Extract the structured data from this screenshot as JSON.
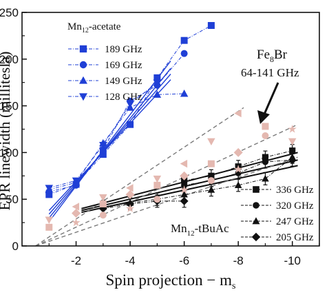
{
  "chart_data": {
    "type": "scatter",
    "xlabel": "Spin projection − m",
    "xlabel_sub": "s",
    "ylabel": "EPR linewidth (millitesla)",
    "xlim": [
      0,
      -11
    ],
    "ylim": [
      0,
      250
    ],
    "x_ticks": [
      -2,
      -4,
      -6,
      -8,
      -10
    ],
    "x_tick_labels": [
      "-2",
      "-4",
      "-6",
      "-8",
      "-10"
    ],
    "y_ticks": [
      0,
      50,
      100,
      150,
      200,
      250
    ],
    "y_tick_labels": [
      "0",
      "50",
      "100",
      "150",
      "200",
      "250"
    ],
    "colors": {
      "mn12_acetate": "#1f3fd6",
      "mn12_tbuac": "#111111",
      "fe8br": "#e4b8b0",
      "fe8_line": "#7a7a7a"
    },
    "groups": {
      "mn12_acetate": {
        "label_main": "Mn",
        "label_sub": "12",
        "label_rest": "-acetate"
      },
      "mn12_tbuac": {
        "label_main": "Mn",
        "label_sub": "12",
        "label_rest": "-tBuAc"
      },
      "fe8br": {
        "label_main": "Fe",
        "label_sub": "8",
        "label_rest": "Br",
        "label_line2": "64-141 GHz"
      }
    },
    "series": [
      {
        "group": "mn12_acetate",
        "name": "189 GHz",
        "marker": "square",
        "x": [
          -1,
          -2,
          -3,
          -4,
          -5,
          -6,
          -7
        ],
        "y": [
          55,
          66,
          98,
          130,
          180,
          220,
          236
        ]
      },
      {
        "group": "mn12_acetate",
        "name": "169 GHz",
        "marker": "circle",
        "x": [
          -1,
          -2,
          -3,
          -4,
          -5,
          -6
        ],
        "y": [
          58,
          65,
          103,
          155,
          172,
          206
        ]
      },
      {
        "group": "mn12_acetate",
        "name": "149 GHz",
        "marker": "triangle-up",
        "x": [
          -1,
          -2,
          -3,
          -4,
          -5,
          -6
        ],
        "y": [
          60,
          68,
          110,
          148,
          162,
          163
        ]
      },
      {
        "group": "mn12_acetate",
        "name": "128 GHz",
        "marker": "triangle-down",
        "x": [
          -1,
          -2,
          -3,
          -4,
          -5
        ],
        "y": [
          62,
          70,
          108,
          152,
          175
        ]
      },
      {
        "group": "mn12_tbuac",
        "name": "336 GHz",
        "marker": "square",
        "x": [
          -6,
          -7,
          -8,
          -9,
          -10
        ],
        "y": [
          70,
          75,
          85,
          95,
          102
        ]
      },
      {
        "group": "mn12_tbuac",
        "name": "320 GHz",
        "marker": "circle",
        "x": [
          -6,
          -7,
          -8,
          -9,
          -10
        ],
        "y": [
          65,
          70,
          78,
          90,
          92
        ]
      },
      {
        "group": "mn12_tbuac",
        "name": "247 GHz",
        "marker": "triangle-up",
        "x": [
          -3,
          -4,
          -5,
          -6,
          -7,
          -8,
          -9,
          -10
        ],
        "y": [
          42,
          46,
          50,
          55,
          60,
          65,
          72,
          95
        ]
      },
      {
        "group": "mn12_tbuac",
        "name": "205 GHz",
        "marker": "diamond",
        "x": [
          -3,
          -4,
          -5,
          -6
        ],
        "y": [
          40,
          45,
          48,
          48
        ]
      },
      {
        "group": "fe8br",
        "name": "",
        "marker": "mixed",
        "x": [
          -1,
          -1,
          -2,
          -2,
          -2,
          -3,
          -3,
          -3,
          -4,
          -4,
          -4,
          -5,
          -5,
          -5,
          -6,
          -6,
          -6,
          -7,
          -7,
          -7,
          -8,
          -8,
          -8,
          -9,
          -9,
          -10,
          -10
        ],
        "y": [
          20,
          28,
          25,
          35,
          42,
          33,
          45,
          52,
          40,
          55,
          62,
          50,
          65,
          72,
          60,
          75,
          88,
          70,
          88,
          112,
          82,
          100,
          142,
          118,
          128,
          112,
          125
        ]
      }
    ],
    "fit_lines": [
      {
        "group": "mn12_acetate",
        "x": [
          -1,
          -5.5
        ],
        "y": [
          26,
          198
        ]
      },
      {
        "group": "mn12_acetate",
        "x": [
          -1,
          -5.5
        ],
        "y": [
          30,
          190
        ]
      },
      {
        "group": "mn12_acetate",
        "x": [
          -1,
          -5.5
        ],
        "y": [
          34,
          184
        ]
      },
      {
        "group": "mn12_acetate",
        "x": [
          -1,
          -5.5
        ],
        "y": [
          38,
          178
        ]
      },
      {
        "group": "mn12_tbuac",
        "x": [
          -2.2,
          -10.2
        ],
        "y": [
          40,
          100
        ]
      },
      {
        "group": "mn12_tbuac",
        "x": [
          -2.2,
          -10.2
        ],
        "y": [
          38,
          92
        ]
      },
      {
        "group": "mn12_tbuac",
        "x": [
          -2.2,
          -10.2
        ],
        "y": [
          36,
          86
        ]
      },
      {
        "group": "fe8br",
        "x": [
          -0.5,
          -8.2
        ],
        "y": [
          0,
          148
        ]
      },
      {
        "group": "fe8br",
        "x": [
          -0.5,
          -10.2
        ],
        "y": [
          0,
          130
        ]
      },
      {
        "group": "fe8br",
        "x": [
          -0.5,
          -10.2
        ],
        "y": [
          0,
          95
        ]
      }
    ]
  }
}
